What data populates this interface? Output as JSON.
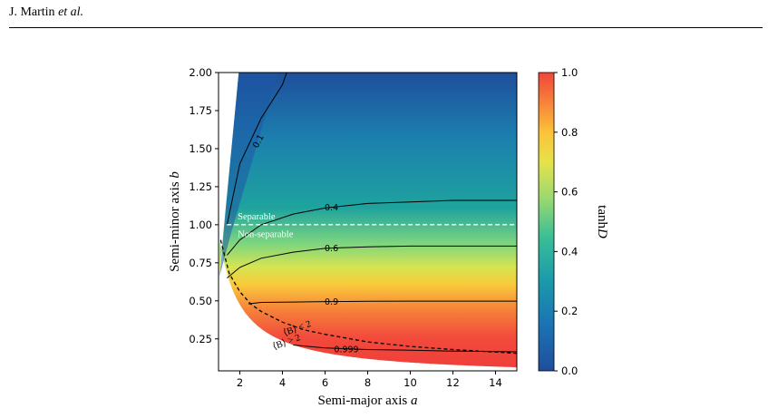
{
  "header": {
    "authors": "J. Martin",
    "etal": "et al."
  },
  "chart_data": {
    "type": "heatmap",
    "xlabel": "Semi-major axis a",
    "ylabel": "Semi-minor axis b",
    "xlim": [
      1,
      15
    ],
    "ylim": [
      0.04,
      2.0
    ],
    "xticks": [
      2,
      4,
      6,
      8,
      10,
      12,
      14
    ],
    "xtick_labels": [
      "2",
      "4",
      "6",
      "8",
      "10",
      "12",
      "14"
    ],
    "yticks": [
      0.25,
      0.5,
      0.75,
      1.0,
      1.25,
      1.5,
      1.75,
      2.0
    ],
    "ytick_labels": [
      "0.25",
      "0.50",
      "0.75",
      "1.00",
      "1.25",
      "1.50",
      "1.75",
      "2.00"
    ],
    "colorbar": {
      "label": "tanh D",
      "range": [
        0.0,
        1.0
      ],
      "ticks": [
        0.0,
        0.2,
        0.4,
        0.6,
        0.8,
        1.0
      ],
      "tick_labels": [
        "0.0",
        "0.2",
        "0.4",
        "0.6",
        "0.8",
        "1.0"
      ],
      "colormap": [
        "#1f4e9c",
        "#1b78b4",
        "#1aa0a8",
        "#5ccd8a",
        "#c9e455",
        "#fdd33a",
        "#f88f3a",
        "#f0453a"
      ]
    },
    "separator": {
      "b": 1.0,
      "upper_label": "Separable",
      "lower_label": "Non-separable"
    },
    "contours": [
      {
        "level": "0.1",
        "points": [
          [
            1.4,
            1.0
          ],
          [
            2.0,
            1.4
          ],
          [
            3.0,
            1.7
          ],
          [
            4.0,
            1.92
          ],
          [
            4.2,
            2.0
          ]
        ]
      },
      {
        "level": "0.4",
        "points": [
          [
            1.4,
            0.8
          ],
          [
            2.0,
            0.9
          ],
          [
            3.0,
            1.0
          ],
          [
            4.5,
            1.07
          ],
          [
            6.0,
            1.11
          ],
          [
            8.0,
            1.14
          ],
          [
            10.0,
            1.15
          ],
          [
            12.0,
            1.16
          ],
          [
            15.0,
            1.16
          ]
        ]
      },
      {
        "level": "0.6",
        "points": [
          [
            1.4,
            0.65
          ],
          [
            2.0,
            0.72
          ],
          [
            3.0,
            0.78
          ],
          [
            4.5,
            0.82
          ],
          [
            6.0,
            0.845
          ],
          [
            8.0,
            0.855
          ],
          [
            10.0,
            0.86
          ],
          [
            15.0,
            0.86
          ]
        ]
      },
      {
        "level": "0.9",
        "points": [
          [
            2.4,
            0.48
          ],
          [
            3.0,
            0.49
          ],
          [
            4.5,
            0.492
          ],
          [
            6.0,
            0.495
          ],
          [
            8.0,
            0.497
          ],
          [
            10.0,
            0.498
          ],
          [
            15.0,
            0.498
          ]
        ]
      },
      {
        "level": "0.999",
        "points": [
          [
            4.5,
            0.21
          ],
          [
            6.0,
            0.19
          ],
          [
            8.0,
            0.18
          ],
          [
            10.0,
            0.175
          ],
          [
            12.0,
            0.17
          ],
          [
            15.0,
            0.165
          ]
        ]
      }
    ],
    "boundary_curve": {
      "label_upper": "⟨B⟩ < 2",
      "label_lower": "⟨B⟩ > 2",
      "points": [
        [
          1.1,
          0.9
        ],
        [
          1.5,
          0.68
        ],
        [
          2.0,
          0.56
        ],
        [
          2.5,
          0.48
        ],
        [
          3.0,
          0.43
        ],
        [
          4.0,
          0.36
        ],
        [
          5.0,
          0.31
        ],
        [
          6.0,
          0.28
        ],
        [
          8.0,
          0.23
        ],
        [
          10.0,
          0.2
        ],
        [
          12.0,
          0.18
        ],
        [
          15.0,
          0.155
        ]
      ]
    }
  }
}
